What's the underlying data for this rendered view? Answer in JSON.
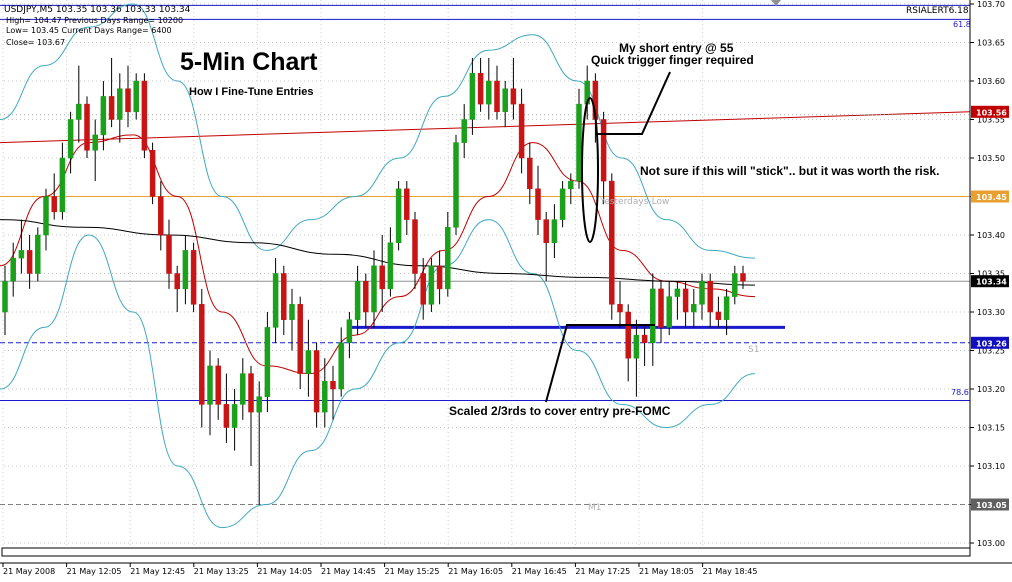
{
  "chart_data": {
    "type": "candlestick",
    "symbol_header": "USDJPY,M5  103.35 103.36 103.33 103.34",
    "info_lines": [
      "High= 104.47    Previous Days Range= 10200",
      "Low= 103.45    Current Days Range= 6400",
      "Close= 103.67"
    ],
    "indicator_label": "RSIALERT6.18",
    "title": "5-Min Chart",
    "subtitle": "How I Fine-Tune Entries",
    "annotations": [
      "My short entry @ 55",
      "Quick trigger finger required",
      "Not sure if this will \"stick\".. but it was worth the risk.",
      "Scaled 2/3rds to cover entry pre-FOMC"
    ],
    "level_labels": {
      "fib_61_8": "61.8",
      "fib_78_6": "78.6",
      "yesterdays_low": "Yesterdays-Low",
      "s1": "S1",
      "m1": "M1"
    },
    "levels": {
      "fib_61_8": 103.68,
      "fib_78_6": 103.185,
      "yesterdays_low": 103.45,
      "s1": 103.26,
      "m1": 103.05,
      "trend_line_start": 103.52,
      "trend_line_end": 103.56,
      "support_line": 103.28
    },
    "y_ticks": [
      "103.70",
      "103.65",
      "103.60",
      "103.55",
      "103.50",
      "103.45",
      "103.40",
      "103.35",
      "103.30",
      "103.25",
      "103.20",
      "103.15",
      "103.10",
      "103.05",
      "103.00"
    ],
    "price_tags": [
      {
        "label": "103.56",
        "value": 103.56,
        "color": "#c00000"
      },
      {
        "label": "103.45",
        "value": 103.45,
        "color": "#e8a030"
      },
      {
        "label": "103.34",
        "value": 103.34,
        "color": "#000000"
      },
      {
        "label": "103.26",
        "value": 103.26,
        "color": "#1010c0"
      },
      {
        "label": "103.05",
        "value": 103.05,
        "color": "#606060"
      }
    ],
    "x_labels": [
      "21 May 2008",
      "21 May 12:05",
      "21 May 12:45",
      "21 May 13:25",
      "21 May 14:05",
      "21 May 14:45",
      "21 May 15:25",
      "21 May 16:05",
      "21 May 16:45",
      "21 May 17:25",
      "21 May 18:05",
      "21 May 18:45"
    ],
    "candles": [
      [
        103.3,
        103.36,
        103.27,
        103.34
      ],
      [
        103.34,
        103.39,
        103.32,
        103.37
      ],
      [
        103.37,
        103.42,
        103.35,
        103.38
      ],
      [
        103.38,
        103.4,
        103.33,
        103.35
      ],
      [
        103.35,
        103.41,
        103.34,
        103.4
      ],
      [
        103.4,
        103.46,
        103.38,
        103.45
      ],
      [
        103.45,
        103.48,
        103.42,
        103.43
      ],
      [
        103.43,
        103.52,
        103.42,
        103.5
      ],
      [
        103.5,
        103.56,
        103.48,
        103.55
      ],
      [
        103.55,
        103.62,
        103.52,
        103.57
      ],
      [
        103.57,
        103.58,
        103.5,
        103.51
      ],
      [
        103.51,
        103.55,
        103.47,
        103.53
      ],
      [
        103.53,
        103.6,
        103.51,
        103.58
      ],
      [
        103.58,
        103.63,
        103.54,
        103.55
      ],
      [
        103.55,
        103.61,
        103.52,
        103.59
      ],
      [
        103.59,
        103.62,
        103.54,
        103.56
      ],
      [
        103.56,
        103.61,
        103.55,
        103.6
      ],
      [
        103.6,
        103.61,
        103.5,
        103.51
      ],
      [
        103.51,
        103.52,
        103.44,
        103.45
      ],
      [
        103.45,
        103.47,
        103.38,
        103.4
      ],
      [
        103.4,
        103.42,
        103.33,
        103.35
      ],
      [
        103.35,
        103.36,
        103.3,
        103.33
      ],
      [
        103.33,
        103.4,
        103.31,
        103.38
      ],
      [
        103.38,
        103.39,
        103.3,
        103.31
      ],
      [
        103.31,
        103.33,
        103.15,
        103.18
      ],
      [
        103.18,
        103.25,
        103.14,
        103.23
      ],
      [
        103.23,
        103.24,
        103.16,
        103.18
      ],
      [
        103.18,
        103.22,
        103.13,
        103.15
      ],
      [
        103.15,
        103.2,
        103.12,
        103.18
      ],
      [
        103.18,
        103.24,
        103.16,
        103.22
      ],
      [
        103.22,
        103.23,
        103.1,
        103.17
      ],
      [
        103.17,
        103.21,
        103.05,
        103.19
      ],
      [
        103.19,
        103.3,
        103.17,
        103.28
      ],
      [
        103.28,
        103.37,
        103.26,
        103.35
      ],
      [
        103.35,
        103.36,
        103.27,
        103.29
      ],
      [
        103.29,
        103.33,
        103.25,
        103.31
      ],
      [
        103.31,
        103.32,
        103.2,
        103.22
      ],
      [
        103.22,
        103.29,
        103.19,
        103.25
      ],
      [
        103.25,
        103.26,
        103.15,
        103.17
      ],
      [
        103.17,
        103.24,
        103.15,
        103.21
      ],
      [
        103.21,
        103.23,
        103.16,
        103.2
      ],
      [
        103.2,
        103.28,
        103.19,
        103.26
      ],
      [
        103.26,
        103.3,
        103.24,
        103.29
      ],
      [
        103.29,
        103.36,
        103.27,
        103.34
      ],
      [
        103.34,
        103.35,
        103.28,
        103.3
      ],
      [
        103.3,
        103.38,
        103.28,
        103.36
      ],
      [
        103.36,
        103.4,
        103.3,
        103.33
      ],
      [
        103.33,
        103.41,
        103.32,
        103.39
      ],
      [
        103.39,
        103.47,
        103.38,
        103.46
      ],
      [
        103.46,
        103.47,
        103.4,
        103.42
      ],
      [
        103.42,
        103.43,
        103.33,
        103.35
      ],
      [
        103.35,
        103.37,
        103.29,
        103.31
      ],
      [
        103.31,
        103.37,
        103.3,
        103.36
      ],
      [
        103.36,
        103.38,
        103.31,
        103.33
      ],
      [
        103.33,
        103.43,
        103.32,
        103.41
      ],
      [
        103.41,
        103.53,
        103.4,
        103.52
      ],
      [
        103.52,
        103.57,
        103.5,
        103.55
      ],
      [
        103.55,
        103.63,
        103.53,
        103.61
      ],
      [
        103.61,
        103.63,
        103.56,
        103.57
      ],
      [
        103.57,
        103.63,
        103.55,
        103.6
      ],
      [
        103.6,
        103.62,
        103.55,
        103.56
      ],
      [
        103.56,
        103.6,
        103.54,
        103.59
      ],
      [
        103.59,
        103.63,
        103.55,
        103.57
      ],
      [
        103.57,
        103.59,
        103.48,
        103.5
      ],
      [
        103.5,
        103.52,
        103.44,
        103.46
      ],
      [
        103.46,
        103.49,
        103.4,
        103.42
      ],
      [
        103.42,
        103.43,
        103.34,
        103.39
      ],
      [
        103.39,
        103.44,
        103.37,
        103.42
      ],
      [
        103.42,
        103.47,
        103.41,
        103.46
      ],
      [
        103.46,
        103.48,
        103.44,
        103.47
      ],
      [
        103.47,
        103.59,
        103.46,
        103.57
      ],
      [
        103.57,
        103.62,
        103.55,
        103.6
      ],
      [
        103.6,
        103.61,
        103.52,
        103.55
      ],
      [
        103.55,
        103.56,
        103.44,
        103.47
      ],
      [
        103.47,
        103.48,
        103.29,
        103.31
      ],
      [
        103.31,
        103.34,
        103.28,
        103.3
      ],
      [
        103.3,
        103.31,
        103.21,
        103.24
      ],
      [
        103.24,
        103.29,
        103.19,
        103.27
      ],
      [
        103.27,
        103.28,
        103.23,
        103.26
      ],
      [
        103.26,
        103.35,
        103.23,
        103.33
      ],
      [
        103.33,
        103.34,
        103.26,
        103.28
      ],
      [
        103.28,
        103.34,
        103.27,
        103.32
      ],
      [
        103.32,
        103.34,
        103.29,
        103.33
      ],
      [
        103.33,
        103.34,
        103.28,
        103.3
      ],
      [
        103.3,
        103.33,
        103.28,
        103.31
      ],
      [
        103.31,
        103.35,
        103.29,
        103.34
      ],
      [
        103.34,
        103.35,
        103.28,
        103.3
      ],
      [
        103.3,
        103.32,
        103.28,
        103.29
      ],
      [
        103.29,
        103.33,
        103.27,
        103.32
      ],
      [
        103.32,
        103.36,
        103.31,
        103.35
      ],
      [
        103.35,
        103.36,
        103.33,
        103.34
      ]
    ],
    "overlays": {
      "moving_average_slow": {
        "color": "#000000",
        "values": [
          103.42,
          103.41,
          103.4,
          103.39,
          103.375,
          103.36,
          103.35,
          103.345,
          103.34,
          103.335
        ]
      },
      "moving_average_fast": {
        "color": "#c00000",
        "values": [
          103.36,
          103.45,
          103.52,
          103.53,
          103.45,
          103.3,
          103.23,
          103.22,
          103.27,
          103.32,
          103.38,
          103.45,
          103.52,
          103.47,
          103.38,
          103.34,
          103.33,
          103.32
        ]
      },
      "bollinger_upper": {
        "color": "#40a8c0",
        "values": [
          103.55,
          103.62,
          103.67,
          103.7,
          103.6,
          103.45,
          103.38,
          103.42,
          103.45,
          103.5,
          103.58,
          103.64,
          103.66,
          103.6,
          103.5,
          103.42,
          103.38,
          103.37
        ]
      },
      "bollinger_lower": {
        "color": "#40a8c0",
        "values": [
          103.2,
          103.28,
          103.4,
          103.3,
          103.1,
          103.02,
          103.05,
          103.12,
          103.2,
          103.26,
          103.36,
          103.42,
          103.35,
          103.25,
          103.18,
          103.15,
          103.18,
          103.22
        ]
      }
    }
  }
}
